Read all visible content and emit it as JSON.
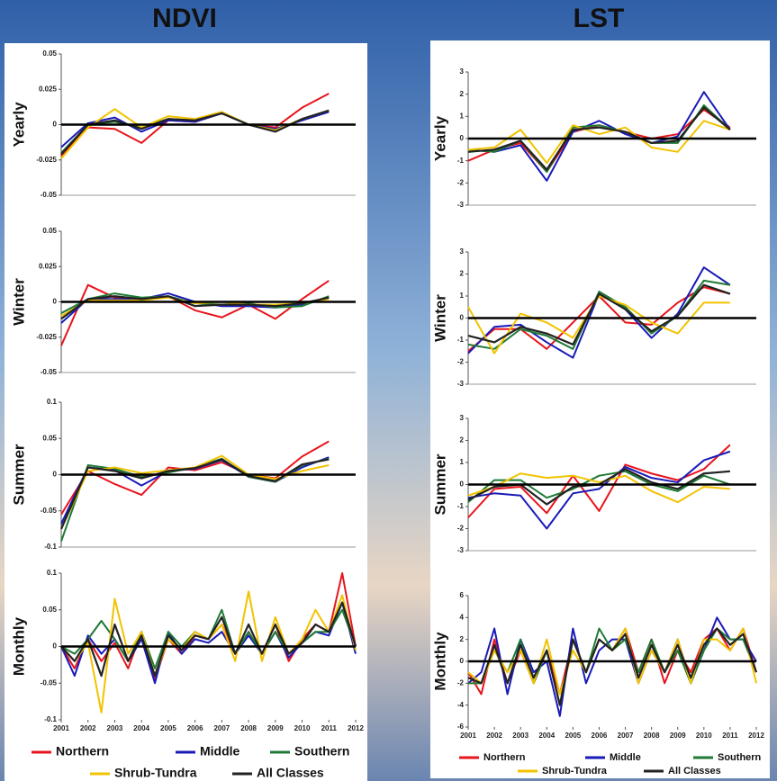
{
  "column_titles": [
    "NDVI",
    "LST"
  ],
  "chart_data": [
    {
      "type": "line",
      "ylabel": "Yearly",
      "xlim": [
        2001,
        2012
      ],
      "ylim": [
        -0.05,
        0.05
      ],
      "yticks": [
        -0.05,
        -0.025,
        0,
        0.025,
        0.05
      ],
      "x": [
        2001,
        2002,
        2003,
        2004,
        2005,
        2006,
        2007,
        2008,
        2009,
        2010,
        2011
      ],
      "series": [
        {
          "name": "Northern",
          "color": "#e8141c",
          "values": [
            -0.022,
            -0.002,
            -0.003,
            -0.013,
            0.003,
            0.002,
            0.008,
            0,
            -0.002,
            0.012,
            0.022
          ]
        },
        {
          "name": "Middle",
          "color": "#1a1ab8",
          "values": [
            -0.016,
            0.001,
            0.005,
            -0.005,
            0.003,
            0.002,
            0.008,
            0,
            -0.003,
            0.003,
            0.009
          ]
        },
        {
          "name": "Southern",
          "color": "#1f7a35",
          "values": [
            -0.02,
            0,
            0.002,
            -0.002,
            0.004,
            0.003,
            0.008,
            0,
            -0.004,
            0.004,
            0.01
          ]
        },
        {
          "name": "Shrub-Tundra",
          "color": "#f2c300",
          "values": [
            -0.024,
            -0.002,
            0.011,
            -0.002,
            0.006,
            0.004,
            0.009,
            0,
            -0.004,
            0.004,
            0.01
          ]
        },
        {
          "name": "All Classes",
          "color": "#222222",
          "values": [
            -0.021,
            0,
            0.003,
            -0.003,
            0.004,
            0.003,
            0.008,
            0,
            -0.005,
            0.004,
            0.01
          ]
        }
      ]
    },
    {
      "type": "line",
      "ylabel": "Winter",
      "xlim": [
        2001,
        2012
      ],
      "ylim": [
        -0.05,
        0.05
      ],
      "yticks": [
        -0.05,
        -0.025,
        0,
        0.025,
        0.05
      ],
      "x": [
        2001,
        2002,
        2003,
        2004,
        2005,
        2006,
        2007,
        2008,
        2009,
        2010,
        2011
      ],
      "series": [
        {
          "name": "Northern",
          "color": "#e8141c",
          "values": [
            -0.031,
            0.012,
            0.003,
            0.002,
            0.004,
            -0.006,
            -0.011,
            -0.002,
            -0.012,
            0.002,
            0.015
          ]
        },
        {
          "name": "Middle",
          "color": "#1a1ab8",
          "values": [
            -0.015,
            0.002,
            0.002,
            0.002,
            0.006,
            0,
            -0.003,
            -0.003,
            -0.004,
            -0.002,
            0.003
          ]
        },
        {
          "name": "Southern",
          "color": "#1f7a35",
          "values": [
            -0.008,
            0.002,
            0.006,
            0.003,
            0.004,
            -0.001,
            -0.002,
            -0.001,
            -0.004,
            -0.003,
            0.004
          ]
        },
        {
          "name": "Shrub-Tundra",
          "color": "#f2c300",
          "values": [
            -0.01,
            0.001,
            0.001,
            0.001,
            0.003,
            -0.001,
            0,
            -0.002,
            -0.002,
            -0.001,
            0.002
          ]
        },
        {
          "name": "All Classes",
          "color": "#222222",
          "values": [
            -0.012,
            0.002,
            0.004,
            0.002,
            0.004,
            -0.003,
            -0.002,
            -0.002,
            -0.003,
            -0.001,
            0.003
          ]
        }
      ]
    },
    {
      "type": "line",
      "ylabel": "Summer",
      "xlim": [
        2001,
        2012
      ],
      "ylim": [
        -0.1,
        0.1
      ],
      "yticks": [
        -0.1,
        -0.05,
        0,
        0.05,
        0.1
      ],
      "x": [
        2001,
        2002,
        2003,
        2004,
        2005,
        2006,
        2007,
        2008,
        2009,
        2010,
        2011
      ],
      "series": [
        {
          "name": "Northern",
          "color": "#e8141c",
          "values": [
            -0.055,
            0.005,
            -0.013,
            -0.028,
            0.01,
            0.006,
            0.017,
            0,
            -0.005,
            0.025,
            0.046
          ]
        },
        {
          "name": "Middle",
          "color": "#1a1ab8",
          "values": [
            -0.068,
            0.01,
            0.006,
            -0.015,
            0.005,
            0.008,
            0.02,
            -0.003,
            -0.01,
            0.01,
            0.024
          ]
        },
        {
          "name": "Southern",
          "color": "#1f7a35",
          "values": [
            -0.092,
            0.013,
            0.008,
            -0.003,
            0.003,
            0.01,
            0.022,
            -0.003,
            -0.01,
            0.013,
            0.022
          ]
        },
        {
          "name": "Shrub-Tundra",
          "color": "#f2c300",
          "values": [
            -0.075,
            0.005,
            0.01,
            0.002,
            0.006,
            0.01,
            0.026,
            0,
            -0.006,
            0.005,
            0.013
          ]
        },
        {
          "name": "All Classes",
          "color": "#222222",
          "values": [
            -0.075,
            0.01,
            0.005,
            -0.005,
            0.005,
            0.009,
            0.021,
            -0.002,
            -0.009,
            0.014,
            0.021
          ]
        }
      ]
    },
    {
      "type": "line",
      "ylabel": "Monthly",
      "xlim": [
        2001,
        2012
      ],
      "ylim": [
        -0.1,
        0.1
      ],
      "yticks": [
        -0.1,
        -0.05,
        0,
        0.05,
        0.1
      ],
      "xticks": [
        2001,
        2002,
        2003,
        2004,
        2005,
        2006,
        2007,
        2008,
        2009,
        2010,
        2011,
        2012
      ],
      "x": [
        2001,
        2001.5,
        2002,
        2002.5,
        2003,
        2003.5,
        2004,
        2004.5,
        2005,
        2005.5,
        2006,
        2006.5,
        2007,
        2007.5,
        2008,
        2008.5,
        2009,
        2009.5,
        2010,
        2010.5,
        2011,
        2011.5,
        2012
      ],
      "series": [
        {
          "name": "Northern",
          "color": "#e8141c",
          "values": [
            0,
            -0.03,
            0.01,
            -0.02,
            0.005,
            -0.03,
            0.02,
            -0.045,
            0.01,
            -0.01,
            0.015,
            0.01,
            0.03,
            -0.01,
            0.02,
            -0.01,
            0.03,
            -0.02,
            0.01,
            0.03,
            0.02,
            0.1,
            0
          ]
        },
        {
          "name": "Middle",
          "color": "#1a1ab8",
          "values": [
            0,
            -0.04,
            0.015,
            -0.01,
            0.01,
            -0.02,
            0.01,
            -0.05,
            0.02,
            -0.01,
            0.01,
            0.005,
            0.02,
            -0.01,
            0.015,
            -0.01,
            0.02,
            -0.015,
            0.005,
            0.02,
            0.015,
            0.06,
            -0.01
          ]
        },
        {
          "name": "Southern",
          "color": "#1f7a35",
          "values": [
            0,
            -0.01,
            0.01,
            0.035,
            0.01,
            -0.02,
            0.02,
            -0.03,
            0.02,
            0,
            0.02,
            0.01,
            0.05,
            -0.01,
            0.02,
            -0.01,
            0.02,
            -0.01,
            0.005,
            0.02,
            0.02,
            0.05,
            0
          ]
        },
        {
          "name": "Shrub-Tundra",
          "color": "#f2c300",
          "values": [
            0,
            -0.02,
            0.005,
            -0.09,
            0.065,
            -0.01,
            0.02,
            -0.04,
            0.01,
            -0.005,
            0.02,
            0.01,
            0.03,
            -0.02,
            0.075,
            -0.02,
            0.04,
            -0.01,
            0.01,
            0.05,
            0.02,
            0.07,
            -0.005
          ]
        },
        {
          "name": "All Classes",
          "color": "#222222",
          "values": [
            0,
            -0.02,
            0.01,
            -0.04,
            0.03,
            -0.02,
            0.015,
            -0.04,
            0.015,
            -0.005,
            0.015,
            0.01,
            0.04,
            -0.01,
            0.03,
            -0.01,
            0.03,
            -0.01,
            0.005,
            0.03,
            0.02,
            0.06,
            0
          ]
        }
      ]
    },
    {
      "type": "line",
      "ylabel": "Yearly",
      "xlim": [
        2001,
        2012
      ],
      "ylim": [
        -3,
        3
      ],
      "yticks": [
        -3,
        -2,
        -1,
        0,
        1,
        2,
        3
      ],
      "x": [
        2001,
        2002,
        2003,
        2004,
        2005,
        2006,
        2007,
        2008,
        2009,
        2010,
        2011
      ],
      "series": [
        {
          "name": "Northern",
          "color": "#e8141c",
          "values": [
            -1,
            -0.5,
            -0.2,
            -1.5,
            0.3,
            0.6,
            0.3,
            0,
            0.2,
            1.3,
            0.5
          ]
        },
        {
          "name": "Middle",
          "color": "#1a1ab8",
          "values": [
            -0.5,
            -0.6,
            -0.3,
            -1.9,
            0.3,
            0.8,
            0.2,
            -0.2,
            0.1,
            2.1,
            0.4
          ]
        },
        {
          "name": "Southern",
          "color": "#1f7a35",
          "values": [
            -0.5,
            -0.6,
            -0.1,
            -1.5,
            0.5,
            0.6,
            0.3,
            -0.2,
            -0.2,
            1.5,
            0.4
          ]
        },
        {
          "name": "Shrub-Tundra",
          "color": "#f2c300",
          "values": [
            -0.5,
            -0.4,
            0.4,
            -1.1,
            0.6,
            0.2,
            0.5,
            -0.4,
            -0.6,
            0.8,
            0.4
          ]
        },
        {
          "name": "All Classes",
          "color": "#222222",
          "values": [
            -0.6,
            -0.5,
            -0.1,
            -1.4,
            0.4,
            0.5,
            0.3,
            -0.2,
            -0.1,
            1.4,
            0.4
          ]
        }
      ]
    },
    {
      "type": "line",
      "ylabel": "Winter",
      "xlim": [
        2001,
        2012
      ],
      "ylim": [
        -3,
        3
      ],
      "yticks": [
        -3,
        -2,
        -1,
        0,
        1,
        2,
        3
      ],
      "x": [
        2001,
        2002,
        2003,
        2004,
        2005,
        2006,
        2007,
        2008,
        2009,
        2010,
        2011
      ],
      "series": [
        {
          "name": "Northern",
          "color": "#e8141c",
          "values": [
            -1.5,
            -0.5,
            -0.5,
            -1.4,
            -0.2,
            1,
            -0.2,
            -0.3,
            0.7,
            1.4,
            1.1
          ]
        },
        {
          "name": "Middle",
          "color": "#1a1ab8",
          "values": [
            -1.6,
            -0.4,
            -0.3,
            -1.1,
            -1.8,
            1.1,
            0.4,
            -0.9,
            0.2,
            2.3,
            1.5
          ]
        },
        {
          "name": "Southern",
          "color": "#1f7a35",
          "values": [
            -1.2,
            -1.4,
            -0.5,
            -0.8,
            -1.4,
            1.2,
            0.5,
            -0.7,
            0.1,
            1.7,
            1.5
          ]
        },
        {
          "name": "Shrub-Tundra",
          "color": "#f2c300",
          "values": [
            0.5,
            -1.6,
            0.2,
            -0.2,
            -0.9,
            1,
            0.6,
            -0.2,
            -0.7,
            0.7,
            0.7
          ]
        },
        {
          "name": "All Classes",
          "color": "#222222",
          "values": [
            -0.8,
            -1.1,
            -0.4,
            -0.7,
            -1.2,
            1.1,
            0.4,
            -0.6,
            0.1,
            1.5,
            1.1
          ]
        }
      ]
    },
    {
      "type": "line",
      "ylabel": "Summer",
      "xlim": [
        2001,
        2012
      ],
      "ylim": [
        -3,
        3
      ],
      "yticks": [
        -3,
        -2,
        -1,
        0,
        1,
        2,
        3
      ],
      "x": [
        2001,
        2002,
        2003,
        2004,
        2005,
        2006,
        2007,
        2008,
        2009,
        2010,
        2011
      ],
      "series": [
        {
          "name": "Northern",
          "color": "#e8141c",
          "values": [
            -1.5,
            -0.2,
            -0.1,
            -1.3,
            0.4,
            -1.2,
            0.9,
            0.5,
            0.2,
            0.7,
            1.8
          ]
        },
        {
          "name": "Middle",
          "color": "#1a1ab8",
          "values": [
            -0.6,
            -0.4,
            -0.5,
            -2,
            -0.4,
            -0.2,
            0.8,
            0.3,
            0.1,
            1.1,
            1.5
          ]
        },
        {
          "name": "Southern",
          "color": "#1f7a35",
          "values": [
            -0.8,
            0.2,
            0.2,
            -0.6,
            -0.2,
            0.4,
            0.6,
            0,
            -0.3,
            0.4,
            0
          ]
        },
        {
          "name": "Shrub-Tundra",
          "color": "#f2c300",
          "values": [
            -0.5,
            -0.1,
            0.5,
            0.3,
            0.4,
            0.1,
            0.4,
            -0.3,
            -0.8,
            -0.1,
            -0.2
          ]
        },
        {
          "name": "All Classes",
          "color": "#222222",
          "values": [
            -0.7,
            -0.1,
            0,
            -0.9,
            -0.1,
            0,
            0.7,
            0.1,
            -0.2,
            0.5,
            0.6
          ]
        }
      ]
    },
    {
      "type": "line",
      "ylabel": "Monthly",
      "xlim": [
        2001,
        2012
      ],
      "ylim": [
        -6,
        6
      ],
      "yticks": [
        -6,
        -4,
        -2,
        0,
        2,
        4,
        6
      ],
      "xticks": [
        2001,
        2002,
        2003,
        2004,
        2005,
        2006,
        2007,
        2008,
        2009,
        2010,
        2011,
        2012
      ],
      "x": [
        2001,
        2001.5,
        2002,
        2002.5,
        2003,
        2003.5,
        2004,
        2004.5,
        2005,
        2005.5,
        2006,
        2006.5,
        2007,
        2007.5,
        2008,
        2008.5,
        2009,
        2009.5,
        2010,
        2010.5,
        2011,
        2011.5,
        2012
      ],
      "series": [
        {
          "name": "Northern",
          "color": "#e8141c",
          "values": [
            -1,
            -3,
            2,
            -2,
            1,
            -2,
            1,
            -3,
            2,
            -1,
            2,
            1,
            3,
            -1,
            2,
            -2,
            1,
            -1,
            2,
            3,
            1,
            3,
            -1
          ]
        },
        {
          "name": "Middle",
          "color": "#1a1ab8",
          "values": [
            -2,
            -1,
            3,
            -3,
            2,
            -1,
            0,
            -5,
            3,
            -2,
            1,
            2,
            2,
            -2,
            1,
            -1,
            2,
            -2,
            1,
            4,
            2,
            2,
            0
          ]
        },
        {
          "name": "Southern",
          "color": "#1f7a35",
          "values": [
            -2,
            -2,
            1,
            -1,
            2,
            -2,
            1,
            -4,
            2,
            -1,
            3,
            1,
            2,
            -1,
            2,
            -1,
            1,
            -2,
            1,
            3,
            2,
            2,
            -1
          ]
        },
        {
          "name": "Shrub-Tundra",
          "color": "#f2c300",
          "values": [
            -1,
            -2,
            1,
            -1,
            1,
            -2,
            2,
            -3,
            1,
            -1,
            2,
            1,
            3,
            -2,
            1,
            -1,
            2,
            -2,
            2,
            2,
            1,
            3,
            -2
          ]
        },
        {
          "name": "All Classes",
          "color": "#222222",
          "values": [
            -1.5,
            -2,
            1.5,
            -2,
            1.5,
            -1.5,
            1,
            -4,
            2,
            -1,
            2,
            1,
            2.5,
            -1.5,
            1.5,
            -1,
            1.5,
            -1.5,
            1.5,
            3,
            1.5,
            2.5,
            -1
          ]
        }
      ]
    }
  ]
}
